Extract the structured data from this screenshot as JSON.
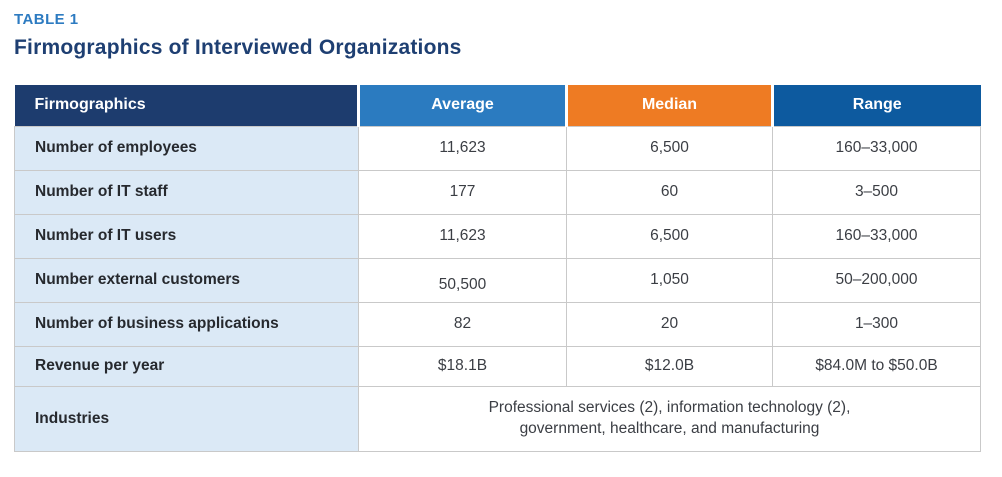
{
  "theme": {
    "accent_blue": "#2d7bc1",
    "navy": "#1e3f72",
    "header_firmographics_bg": "#1d3c6e",
    "header_average_bg": "#2b7bc0",
    "header_median_bg": "#ee7b23",
    "header_range_bg": "#0d5a9f",
    "row_label_bg": "#dbe9f6",
    "border": "#c9c9c9"
  },
  "header": {
    "table_label": "TABLE 1",
    "title": "Firmographics of Interviewed Organizations"
  },
  "table": {
    "columns": [
      {
        "label": "Firmographics"
      },
      {
        "label": "Average"
      },
      {
        "label": "Median"
      },
      {
        "label": "Range"
      }
    ],
    "rows": [
      {
        "label": "Number of employees",
        "average": "11,623",
        "median": "6,500",
        "range": "160–33,000"
      },
      {
        "label": "Number of IT staff",
        "average": "177",
        "median": "60",
        "range": "3–500"
      },
      {
        "label": "Number of IT users",
        "average": "11,623",
        "median": "6,500",
        "range": "160–33,000"
      },
      {
        "label": "Number external customers",
        "average": "50,500",
        "median": "1,050",
        "range": "50–200,000"
      },
      {
        "label": "Number of business applications",
        "average": "82",
        "median": "20",
        "range": "1–300"
      },
      {
        "label": "Revenue per year",
        "average": "$18.1B",
        "median": "$12.0B",
        "range": "$84.0M to $50.0B"
      },
      {
        "label": "Industries",
        "value": "Professional services (2), information technology (2), government, healthcare, and manufacturing"
      }
    ]
  }
}
